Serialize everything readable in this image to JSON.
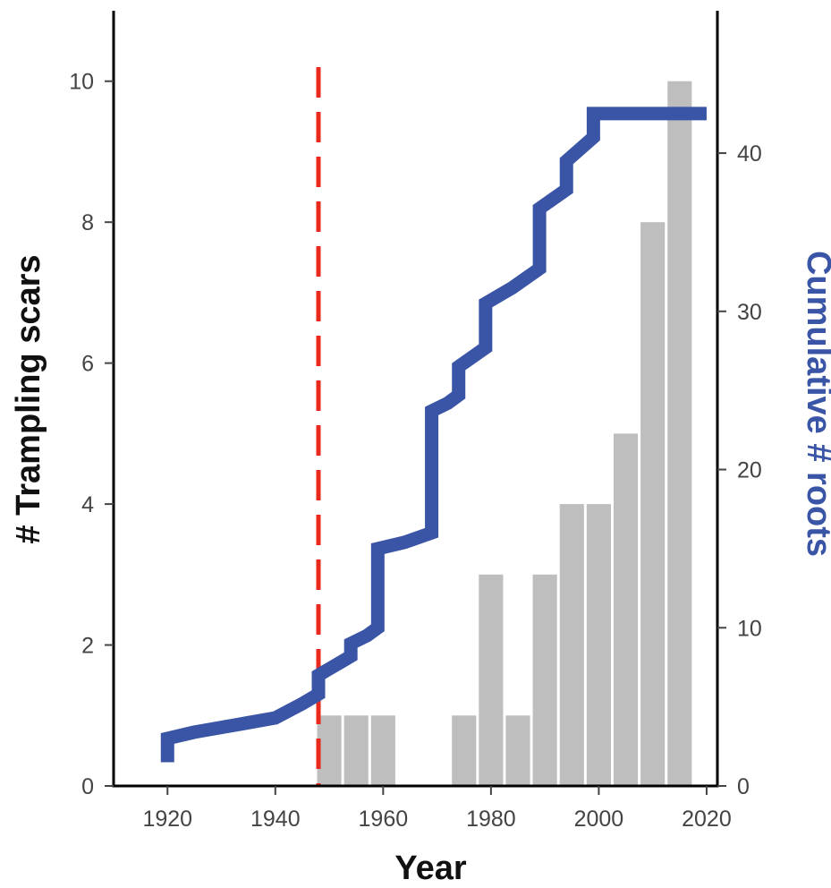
{
  "chart_data": {
    "type": "bar+line",
    "xlabel": "Year",
    "ylabel_left": "# Trampling scars",
    "ylabel_right": "Cumulative # roots",
    "xlim": [
      1910,
      2022
    ],
    "ylim_left": [
      0,
      11
    ],
    "ylim_right": [
      0,
      49
    ],
    "x_ticks": [
      1920,
      1940,
      1960,
      1980,
      2000,
      2020
    ],
    "y_ticks_left": [
      0,
      2,
      4,
      6,
      8,
      10
    ],
    "y_ticks_right": [
      0,
      10,
      20,
      30,
      40
    ],
    "grid": false,
    "bars": {
      "bin_width": 5,
      "series_name": "# Trampling scars",
      "x": [
        1950,
        1955,
        1960,
        1975,
        1980,
        1985,
        1990,
        1995,
        2000,
        2005,
        2010,
        2015
      ],
      "values": [
        1,
        1,
        1,
        1,
        3,
        1,
        3,
        4,
        4,
        5,
        8,
        10
      ],
      "color": "#bebebe"
    },
    "line": {
      "series_name": "Cumulative # roots",
      "color": "#3a55a6",
      "points": [
        [
          1920,
          1.5
        ],
        [
          1920,
          3
        ],
        [
          1925,
          3.4
        ],
        [
          1930,
          3.7
        ],
        [
          1935,
          4
        ],
        [
          1940,
          4.3
        ],
        [
          1945,
          5.2
        ],
        [
          1948,
          5.8
        ],
        [
          1948,
          7
        ],
        [
          1951,
          7.6
        ],
        [
          1954,
          8.2
        ],
        [
          1954,
          9
        ],
        [
          1957,
          9.5
        ],
        [
          1959,
          10
        ],
        [
          1959,
          15
        ],
        [
          1964,
          15.4
        ],
        [
          1969,
          16
        ],
        [
          1969,
          23.7
        ],
        [
          1972,
          24.2
        ],
        [
          1974,
          24.7
        ],
        [
          1974,
          26.5
        ],
        [
          1979,
          27.7
        ],
        [
          1979,
          30.5
        ],
        [
          1984,
          31.5
        ],
        [
          1989,
          32.7
        ],
        [
          1989,
          36.5
        ],
        [
          1994,
          37.7
        ],
        [
          1994,
          39.5
        ],
        [
          1999,
          41
        ],
        [
          1999,
          42.5
        ],
        [
          2020,
          42.5
        ]
      ]
    },
    "reference_line": {
      "x": 1948,
      "style": "dashed",
      "color": "#e8291c"
    }
  }
}
